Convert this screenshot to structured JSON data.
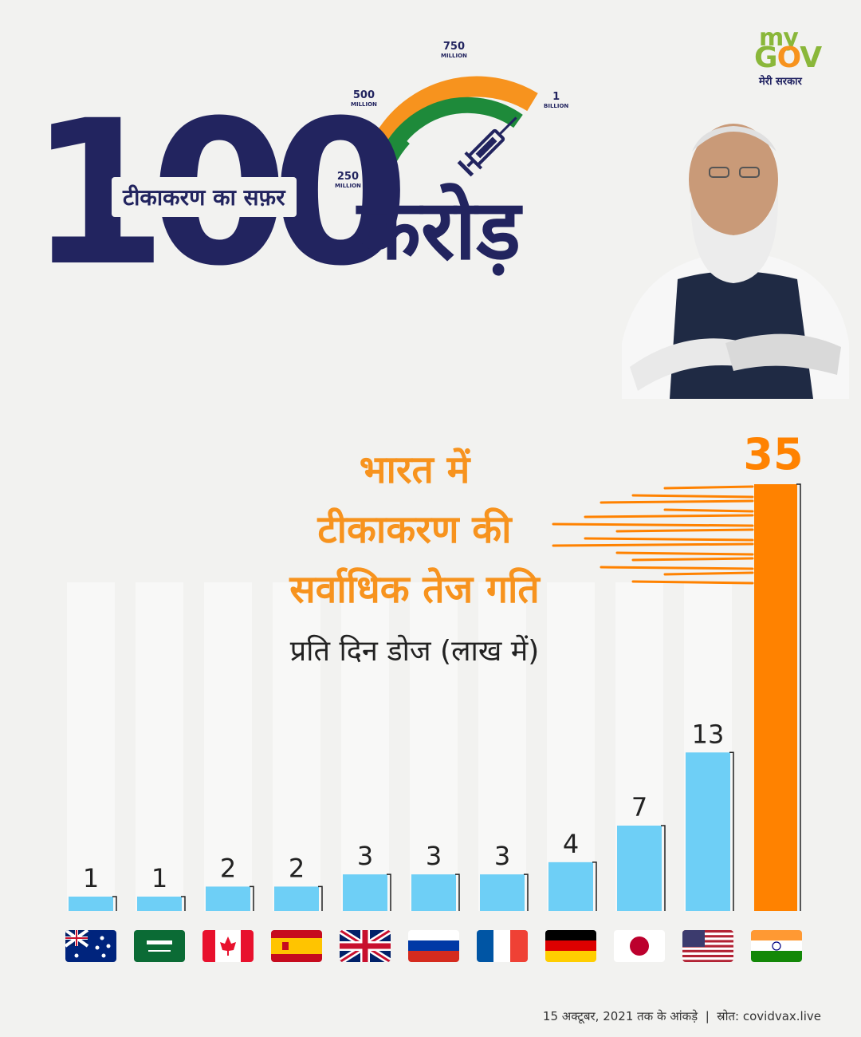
{
  "brand": {
    "logo_my": "my",
    "logo_gov_g": "G",
    "logo_gov_o": "O",
    "logo_gov_v": "V",
    "logo_sub": "मेरी सरकार",
    "green": "#8ab73a",
    "orange": "#f7931e"
  },
  "header": {
    "number": "100",
    "journey": "टीकाकरण का सफ़र",
    "crore": "करोड़",
    "gauge": [
      {
        "value": "250",
        "unit": "MILLION"
      },
      {
        "value": "500",
        "unit": "MILLION"
      },
      {
        "value": "750",
        "unit": "MILLION"
      },
      {
        "value": "1",
        "unit": "BILLION"
      }
    ],
    "navy": "#22245f"
  },
  "headline": {
    "line1": "भारत में",
    "line2": "टीकाकरण की",
    "line3": "सर्वाधिक तेज गति",
    "subtitle": "प्रति दिन डोज (लाख में)"
  },
  "chart_data": {
    "type": "bar",
    "categories": [
      "Australia",
      "Saudi Arabia",
      "Canada",
      "Spain",
      "United Kingdom",
      "Russia",
      "France",
      "Germany",
      "Japan",
      "USA",
      "India"
    ],
    "values": [
      1,
      1,
      2,
      2,
      3,
      3,
      3,
      4,
      7,
      13,
      35
    ],
    "bar_color": "#6ecff6",
    "highlight_color": "#ff8200",
    "highlight_index": 10,
    "ylabel": "प्रति दिन डोज (लाख में)"
  },
  "footer": {
    "date_note": "15 अक्टूबर, 2021 तक के आंकड़े",
    "separator": "|",
    "source": "स्रोत: covidvax.live"
  }
}
